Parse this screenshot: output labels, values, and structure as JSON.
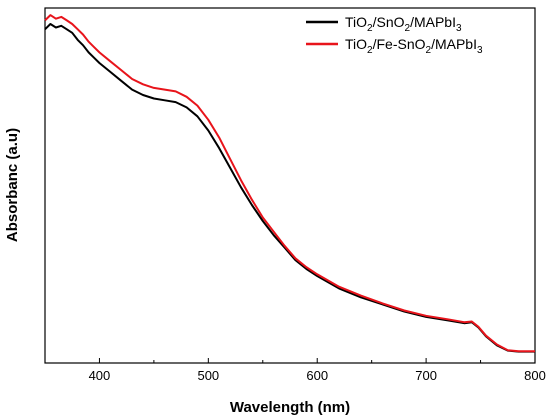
{
  "chart_data": {
    "type": "line",
    "title": "",
    "xlabel": "Wavelength (nm)",
    "ylabel": "Absorbanc (a.u)",
    "xlim": [
      350,
      800
    ],
    "ylim": [
      0,
      1
    ],
    "x_ticks": [
      400,
      500,
      600,
      700,
      800
    ],
    "y_ticks": [],
    "grid": false,
    "legend_position": "top-right",
    "series": [
      {
        "name_parts": [
          [
            "TiO",
            ""
          ],
          [
            "2",
            "sub"
          ],
          [
            "/SnO",
            ""
          ],
          [
            "2",
            "sub"
          ],
          [
            "/MAPbI",
            ""
          ],
          [
            "3",
            "sub"
          ]
        ],
        "color": "#000000",
        "x": [
          350,
          355,
          360,
          365,
          370,
          375,
          380,
          385,
          390,
          395,
          400,
          410,
          420,
          430,
          440,
          450,
          460,
          470,
          480,
          490,
          500,
          510,
          520,
          530,
          540,
          550,
          560,
          570,
          580,
          590,
          600,
          620,
          640,
          660,
          680,
          700,
          720,
          735,
          742,
          748,
          755,
          765,
          775,
          785,
          800
        ],
        "y": [
          0.94,
          0.955,
          0.945,
          0.95,
          0.94,
          0.93,
          0.91,
          0.895,
          0.875,
          0.86,
          0.845,
          0.82,
          0.795,
          0.77,
          0.755,
          0.745,
          0.74,
          0.735,
          0.72,
          0.695,
          0.655,
          0.605,
          0.55,
          0.495,
          0.445,
          0.4,
          0.36,
          0.325,
          0.29,
          0.265,
          0.245,
          0.21,
          0.185,
          0.165,
          0.145,
          0.13,
          0.12,
          0.112,
          0.115,
          0.1,
          0.075,
          0.05,
          0.035,
          0.032,
          0.032
        ]
      },
      {
        "name_parts": [
          [
            "TiO",
            ""
          ],
          [
            "2",
            "sub"
          ],
          [
            "/Fe-SnO",
            ""
          ],
          [
            "2",
            "sub"
          ],
          [
            "/MAPbI",
            ""
          ],
          [
            "3",
            "sub"
          ]
        ],
        "color": "#e8141b",
        "x": [
          350,
          355,
          360,
          365,
          370,
          375,
          380,
          385,
          390,
          395,
          400,
          410,
          420,
          430,
          440,
          450,
          460,
          470,
          480,
          490,
          500,
          510,
          520,
          530,
          540,
          550,
          560,
          570,
          580,
          590,
          600,
          620,
          640,
          660,
          680,
          700,
          720,
          735,
          742,
          748,
          755,
          765,
          775,
          785,
          800
        ],
        "y": [
          0.965,
          0.98,
          0.97,
          0.975,
          0.965,
          0.955,
          0.94,
          0.925,
          0.905,
          0.89,
          0.875,
          0.85,
          0.825,
          0.8,
          0.785,
          0.775,
          0.77,
          0.765,
          0.75,
          0.725,
          0.685,
          0.635,
          0.575,
          0.515,
          0.46,
          0.41,
          0.37,
          0.33,
          0.295,
          0.27,
          0.25,
          0.215,
          0.19,
          0.168,
          0.148,
          0.133,
          0.123,
          0.115,
          0.117,
          0.102,
          0.077,
          0.052,
          0.036,
          0.033,
          0.033
        ]
      }
    ]
  }
}
